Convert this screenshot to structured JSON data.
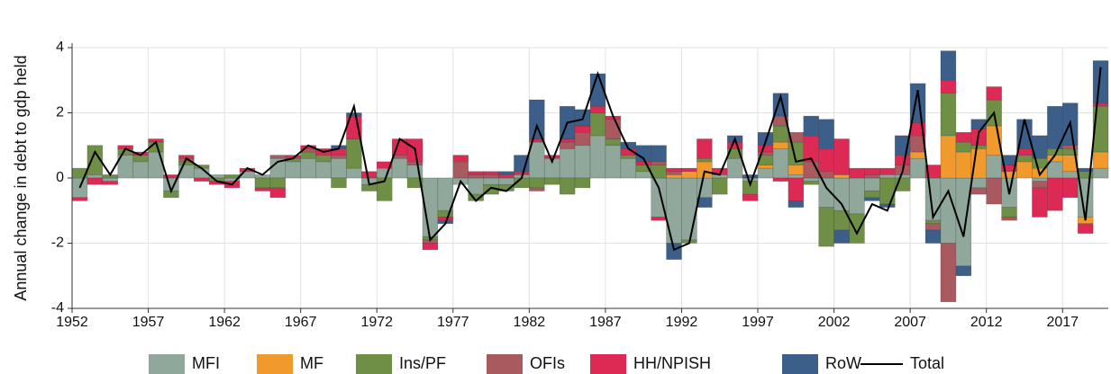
{
  "chart_data": {
    "type": "bar",
    "y_label": "Annual change in debt to gdp held",
    "x": [
      1952,
      1953,
      1954,
      1955,
      1956,
      1957,
      1958,
      1959,
      1960,
      1961,
      1962,
      1963,
      1964,
      1965,
      1966,
      1967,
      1968,
      1969,
      1970,
      1971,
      1972,
      1973,
      1974,
      1975,
      1976,
      1977,
      1978,
      1979,
      1980,
      1981,
      1982,
      1983,
      1984,
      1985,
      1986,
      1987,
      1988,
      1989,
      1990,
      1991,
      1992,
      1993,
      1994,
      1995,
      1996,
      1997,
      1998,
      1999,
      2000,
      2001,
      2002,
      2003,
      2004,
      2005,
      2006,
      2007,
      2008,
      2009,
      2010,
      2011,
      2012,
      2013,
      2014,
      2015,
      2016,
      2017,
      2018,
      2019
    ],
    "xlim": [
      1952,
      2020
    ],
    "xticks": [
      1952,
      1957,
      1962,
      1967,
      1972,
      1977,
      1982,
      1987,
      1992,
      1997,
      2002,
      2007,
      2012,
      2017
    ],
    "ylim": [
      -4,
      4
    ],
    "yticks": [
      -4,
      -2,
      0,
      2,
      4
    ],
    "grid": true,
    "stacked": true,
    "series": [
      {
        "name": "MFI",
        "color": "#8fa89b",
        "values": [
          -0.6,
          0.1,
          -0.1,
          0.7,
          0.5,
          0.8,
          -0.4,
          0.4,
          0.3,
          0.1,
          -0.1,
          0.2,
          0.1,
          0.6,
          0.5,
          0.6,
          0.5,
          0.6,
          0.3,
          -0.2,
          0.3,
          0.6,
          0.4,
          -1.8,
          -1.0,
          -0.2,
          -0.5,
          -0.2,
          -0.2,
          0.1,
          1.1,
          0.6,
          0.9,
          1.0,
          1.3,
          1.0,
          0.6,
          0.2,
          -1.2,
          -2.0,
          -1.9,
          -0.6,
          0.1,
          0.6,
          -0.1,
          0.3,
          0.9,
          0.1,
          -0.1,
          -0.9,
          -1.0,
          -1.1,
          -0.4,
          0.1,
          0.1,
          0.6,
          -1.3,
          -2.0,
          -2.7,
          -0.3,
          0.7,
          -0.9,
          0,
          -0.1,
          0.5,
          0.2,
          -1.2,
          0.3
        ]
      },
      {
        "name": "MF",
        "color": "#f09a2e",
        "values": [
          0,
          0,
          0,
          0,
          0,
          0,
          0,
          0,
          0,
          0,
          0,
          0,
          0,
          0,
          0,
          0,
          0,
          0,
          0,
          0,
          0,
          0,
          0,
          0,
          0,
          0,
          0,
          0,
          0,
          0,
          0,
          0,
          0,
          0,
          0,
          0,
          0,
          0,
          0,
          0.1,
          0.2,
          0.5,
          0,
          0,
          0,
          0.1,
          0.2,
          0.3,
          0,
          0,
          0.1,
          0,
          0,
          0,
          0,
          0.2,
          0,
          1.3,
          0.8,
          0.9,
          0.9,
          0.2,
          0.5,
          0.3,
          0.2,
          0.5,
          -0.2,
          0.5
        ]
      },
      {
        "name": "Ins/PF",
        "color": "#6e8f45",
        "values": [
          0.3,
          0.9,
          0.1,
          0.2,
          0.2,
          0.3,
          -0.2,
          0.1,
          0.1,
          -0.1,
          0.1,
          0,
          -0.3,
          -0.3,
          0.1,
          0.2,
          0.2,
          -0.3,
          0.9,
          -0.2,
          -0.7,
          0,
          -0.3,
          -0.1,
          -0.2,
          0,
          -0.2,
          -0.3,
          -0.2,
          -0.3,
          -0.3,
          -0.2,
          -0.5,
          -0.3,
          0.7,
          0.2,
          0.1,
          0.2,
          0.4,
          0,
          -0.1,
          0.1,
          -0.5,
          0.3,
          -0.4,
          0.3,
          0.5,
          0.7,
          -0.1,
          -1.2,
          -0.6,
          -0.9,
          -0.2,
          -0.8,
          -0.4,
          0,
          -0.1,
          1.3,
          0.3,
          0.1,
          0.8,
          -0.3,
          0.2,
          0.3,
          0.2,
          0.2,
          0.2,
          1.4
        ]
      },
      {
        "name": "OFIs",
        "color": "#a85a5f",
        "values": [
          0,
          0,
          0,
          0,
          0,
          0,
          0,
          0.1,
          0,
          0,
          0,
          0,
          0,
          0.1,
          0,
          0.1,
          0,
          0.1,
          0,
          0,
          0,
          0.1,
          0.1,
          -0.1,
          0,
          0.5,
          0.1,
          0.1,
          0,
          0,
          -0.1,
          0,
          0.2,
          0.4,
          0,
          0.6,
          0,
          0,
          0.1,
          0.1,
          0,
          0,
          0,
          0,
          0,
          0.1,
          0.3,
          0.3,
          0.5,
          0.2,
          0,
          0,
          0.1,
          0,
          0.3,
          0.5,
          -0.2,
          -1.8,
          0,
          -0.2,
          -0.8,
          -0.1,
          0,
          -0.2,
          0,
          0.1,
          0,
          0
        ]
      },
      {
        "name": "HH/NPISH",
        "color": "#dc2a55",
        "values": [
          -0.1,
          -0.2,
          -0.1,
          0.1,
          0.1,
          0.1,
          0.1,
          0.1,
          -0.1,
          -0.1,
          -0.2,
          0.1,
          -0.1,
          -0.3,
          0.1,
          0.1,
          0.2,
          0.2,
          0.7,
          0.2,
          0.2,
          0.5,
          0.7,
          -0.2,
          -0.1,
          0.2,
          0.1,
          0.1,
          0.1,
          0.1,
          0.1,
          0.1,
          0.1,
          0.2,
          0.2,
          0.1,
          0.2,
          0.1,
          -0.1,
          0.1,
          0.1,
          0.6,
          0.2,
          0.2,
          -0.2,
          0.2,
          -0.1,
          -0.7,
          0.8,
          0.7,
          1.1,
          0.3,
          0.2,
          0.2,
          0.3,
          0.4,
          0.4,
          0.4,
          0.3,
          0.5,
          0.4,
          0.2,
          0.2,
          -0.9,
          -1.0,
          -0.6,
          -0.3,
          0.1
        ]
      },
      {
        "name": "RoW",
        "color": "#3c5f8a",
        "values": [
          0,
          0,
          0,
          0,
          0,
          0,
          0,
          0,
          0,
          0,
          0,
          0,
          0,
          0,
          0,
          0,
          0,
          0.1,
          0.1,
          0,
          0,
          0,
          0,
          0,
          -0.1,
          0,
          0,
          0,
          0.1,
          0.5,
          1.2,
          0,
          1.0,
          0.5,
          1.0,
          0,
          0.2,
          0.5,
          0.5,
          -0.5,
          0,
          -0.3,
          0,
          0.2,
          0.1,
          0.4,
          0.7,
          -0.2,
          0.6,
          0.9,
          -0.4,
          0,
          -0.1,
          -0.1,
          0.6,
          1.2,
          -0.4,
          0.9,
          -0.3,
          0.3,
          0,
          0.3,
          0.9,
          0.7,
          1.3,
          1.3,
          0.1,
          1.3
        ]
      }
    ],
    "line": {
      "name": "Total",
      "color": "#000000",
      "values": [
        -0.3,
        0.8,
        0.1,
        0.9,
        0.7,
        1.1,
        -0.4,
        0.6,
        0.3,
        -0.1,
        -0.2,
        0.3,
        0.1,
        0.5,
        0.6,
        1.0,
        0.8,
        0.9,
        2.2,
        -0.2,
        -0.1,
        1.2,
        0.9,
        -1.9,
        -1.4,
        -0.1,
        -0.7,
        -0.3,
        -0.4,
        0,
        1.6,
        0.5,
        1.7,
        1.8,
        3.2,
        1.9,
        0.9,
        0.6,
        -0.3,
        -2.2,
        -2.0,
        0.2,
        0.1,
        1.2,
        -0.2,
        1.1,
        2.5,
        0.5,
        0.6,
        -0.3,
        -0.8,
        -1.7,
        -0.8,
        -1.0,
        0.2,
        2.7,
        -1.2,
        -0.4,
        -1.8,
        1.4,
        2.0,
        -0.5,
        1.8,
        0.1,
        0.7,
        1.7,
        -1.3,
        3.4
      ]
    }
  }
}
